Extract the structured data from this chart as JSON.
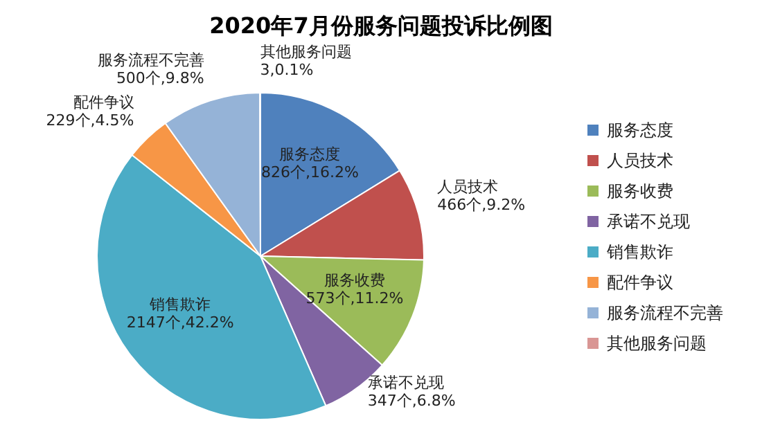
{
  "chart_data": {
    "type": "pie",
    "title": "2020年7月份服务问题投诉比例图",
    "categories": [
      "服务态度",
      "人员技术",
      "服务收费",
      "承诺不兑现",
      "销售欺诈",
      "配件争议",
      "服务流程不完善",
      "其他服务问题"
    ],
    "values": [
      826,
      466,
      573,
      347,
      2147,
      229,
      500,
      3
    ],
    "value_labels": [
      "826个,16.2%",
      "466个,9.2%",
      "573个,11.2%",
      "347个,6.8%",
      "2147个,42.2%",
      "229个,4.5%",
      "500个,9.8%",
      "3,0.1%"
    ],
    "colors": [
      "#4f81bd",
      "#c0504d",
      "#9bbb59",
      "#8064a2",
      "#4bacc6",
      "#f79646",
      "#95b3d7",
      "#d99694"
    ],
    "legend": "right"
  }
}
